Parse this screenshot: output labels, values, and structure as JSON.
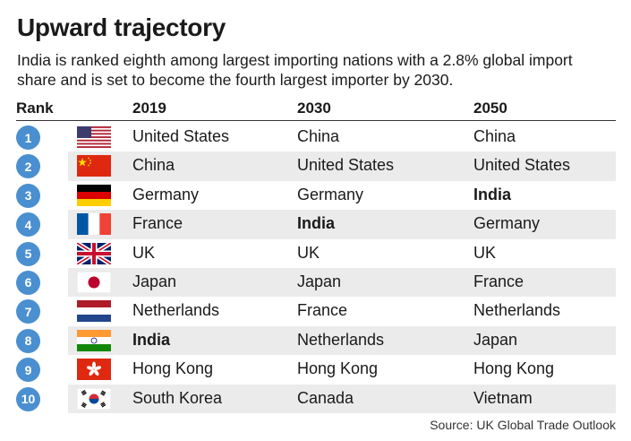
{
  "title": "Upward trajectory",
  "subtitle": "India is ranked eighth among largest importing nations with a 2.8% global import share and is set to become the fourth largest importer by 2030.",
  "headers": {
    "rank": "Rank",
    "y2019": "2019",
    "y2030": "2030",
    "y2050": "2050"
  },
  "rows": [
    {
      "rank": "1",
      "flag": "us-flag-icon",
      "c2019": "United States",
      "c2030": "China",
      "c2050": "China"
    },
    {
      "rank": "2",
      "flag": "china-flag-icon",
      "c2019": "China",
      "c2030": "United States",
      "c2050": "United States"
    },
    {
      "rank": "3",
      "flag": "germany-flag-icon",
      "c2019": "Germany",
      "c2030": "Germany",
      "c2050": "India"
    },
    {
      "rank": "4",
      "flag": "france-flag-icon",
      "c2019": "France",
      "c2030": "India",
      "c2050": "Germany"
    },
    {
      "rank": "5",
      "flag": "uk-flag-icon",
      "c2019": "UK",
      "c2030": "UK",
      "c2050": "UK"
    },
    {
      "rank": "6",
      "flag": "japan-flag-icon",
      "c2019": "Japan",
      "c2030": "Japan",
      "c2050": "France"
    },
    {
      "rank": "7",
      "flag": "netherlands-flag-icon",
      "c2019": "Netherlands",
      "c2030": "France",
      "c2050": "Netherlands"
    },
    {
      "rank": "8",
      "flag": "india-flag-icon",
      "c2019": "India",
      "c2030": "Netherlands",
      "c2050": "Japan"
    },
    {
      "rank": "9",
      "flag": "hong-kong-flag-icon",
      "c2019": "Hong Kong",
      "c2030": "Hong Kong",
      "c2050": "Hong Kong"
    },
    {
      "rank": "10",
      "flag": "south-korea-flag-icon",
      "c2019": "South Korea",
      "c2030": "Canada",
      "c2050": "Vietnam"
    }
  ],
  "highlight": "India",
  "colors": {
    "badge": "#4a8fd0",
    "band": "#ebebeb"
  },
  "source": "Source: UK Global Trade Outlook"
}
